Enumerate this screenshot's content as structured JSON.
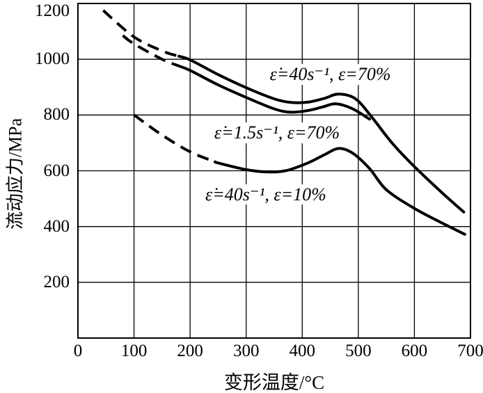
{
  "figure": {
    "background": "#ffffff",
    "ink": "#000000"
  },
  "chart_data": {
    "type": "line",
    "title": "",
    "xlabel": "变形温度/°C",
    "ylabel": "流动应力/MPa",
    "xlim": [
      0,
      700
    ],
    "ylim": [
      0,
      1200
    ],
    "x_ticks": [
      0,
      100,
      200,
      300,
      400,
      500,
      600,
      700
    ],
    "y_ticks": [
      200,
      400,
      600,
      800,
      1000,
      1200
    ],
    "grid": true,
    "grid_color": "#000000",
    "curve_color": "#000000",
    "line_style_note": "each curve starts dashed at low temperature, solid above dash_until",
    "series": [
      {
        "name": "curve-rate40-strain70",
        "label": "ε̇=40s⁻¹, ε=70%",
        "dash_until": 180,
        "points": [
          [
            45,
            1175
          ],
          [
            100,
            1080
          ],
          [
            150,
            1030
          ],
          [
            200,
            998
          ],
          [
            250,
            945
          ],
          [
            300,
            898
          ],
          [
            350,
            858
          ],
          [
            380,
            845
          ],
          [
            410,
            846
          ],
          [
            440,
            860
          ],
          [
            465,
            875
          ],
          [
            495,
            858
          ],
          [
            525,
            790
          ],
          [
            560,
            700
          ],
          [
            600,
            615
          ],
          [
            650,
            520
          ],
          [
            688,
            452
          ]
        ]
      },
      {
        "name": "curve-rate1p5-strain70",
        "label": "ε̇=1.5s⁻¹, ε=70%",
        "dash_until": 180,
        "points": [
          [
            80,
            1085
          ],
          [
            100,
            1055
          ],
          [
            150,
            1000
          ],
          [
            200,
            960
          ],
          [
            250,
            908
          ],
          [
            300,
            863
          ],
          [
            350,
            822
          ],
          [
            380,
            810
          ],
          [
            410,
            816
          ],
          [
            435,
            828
          ],
          [
            460,
            840
          ],
          [
            490,
            822
          ],
          [
            520,
            785
          ]
        ]
      },
      {
        "name": "curve-rate40-strain10",
        "label": "ε̇=40s⁻¹, ε=10%",
        "dash_until": 245,
        "points": [
          [
            100,
            800
          ],
          [
            150,
            728
          ],
          [
            200,
            668
          ],
          [
            250,
            628
          ],
          [
            300,
            604
          ],
          [
            335,
            596
          ],
          [
            370,
            600
          ],
          [
            410,
            628
          ],
          [
            440,
            658
          ],
          [
            465,
            680
          ],
          [
            490,
            663
          ],
          [
            520,
            608
          ],
          [
            550,
            532
          ],
          [
            600,
            465
          ],
          [
            650,
            412
          ],
          [
            690,
            372
          ]
        ]
      }
    ],
    "annotations": [
      {
        "name": "label-rate40-strain70",
        "text": "ε̇=40s⁻¹, ε=70%",
        "x": 450,
        "y": 945
      },
      {
        "name": "label-rate1p5-strain70",
        "text": "ε̇=1.5s⁻¹, ε=70%",
        "x": 355,
        "y": 735
      },
      {
        "name": "label-rate40-strain10",
        "text": "ε̇=40s⁻¹, ε=10%",
        "x": 335,
        "y": 515
      }
    ]
  }
}
